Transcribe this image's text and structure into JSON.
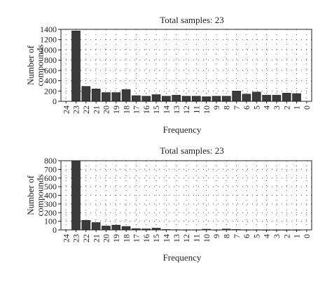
{
  "chart_data": [
    {
      "type": "bar",
      "title": "Total samples: 23",
      "xlabel": "Frequency",
      "ylabel": "Number of compounds",
      "ylabel_lines": [
        "Number of",
        "compounds"
      ],
      "categories": [
        "24",
        "23",
        "22",
        "21",
        "20",
        "19",
        "18",
        "17",
        "16",
        "15",
        "14",
        "13",
        "12",
        "11",
        "10",
        "9",
        "8",
        "7",
        "6",
        "5",
        "4",
        "3",
        "2",
        "1",
        "0"
      ],
      "values": [
        0,
        1370,
        290,
        240,
        170,
        170,
        230,
        110,
        100,
        130,
        100,
        120,
        100,
        100,
        90,
        100,
        100,
        200,
        140,
        180,
        120,
        120,
        160,
        150,
        0
      ],
      "ylim": [
        0,
        1400
      ],
      "yticks": [
        0,
        200,
        400,
        600,
        800,
        1000,
        1200,
        1400
      ],
      "grid": "dotted",
      "bar_color": "#3b3b3b"
    },
    {
      "type": "bar",
      "title": "Total samples: 23",
      "xlabel": "Frequency",
      "ylabel": "Number of compounds",
      "ylabel_lines": [
        "Number of",
        "compounds"
      ],
      "categories": [
        "24",
        "23",
        "22",
        "21",
        "20",
        "19",
        "18",
        "17",
        "16",
        "15",
        "14",
        "13",
        "12",
        "11",
        "10",
        "9",
        "8",
        "7",
        "6",
        "5",
        "4",
        "3",
        "2",
        "1",
        "0"
      ],
      "values": [
        0,
        800,
        110,
        85,
        45,
        55,
        40,
        15,
        12,
        20,
        5,
        3,
        2,
        2,
        8,
        2,
        10,
        5,
        2,
        2,
        1,
        1,
        1,
        1,
        0
      ],
      "ylim": [
        0,
        800
      ],
      "yticks": [
        0,
        100,
        200,
        300,
        400,
        500,
        600,
        700,
        800
      ],
      "grid": "dotted",
      "bar_color": "#3b3b3b"
    }
  ]
}
